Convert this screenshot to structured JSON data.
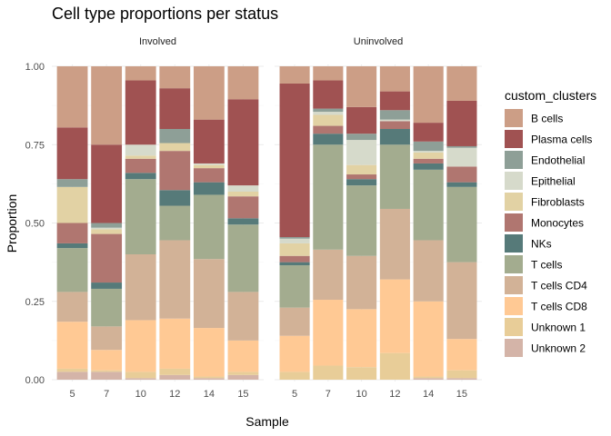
{
  "chart_data": {
    "type": "bar",
    "stacked": true,
    "title": "Cell type proportions per status",
    "xlabel": "Sample",
    "ylabel": "Proportion",
    "ylim": [
      0,
      1
    ],
    "yticks": [
      "0.00",
      "0.25",
      "0.50",
      "0.75",
      "1.00"
    ],
    "grid": true,
    "legend_title": "custom_clusters",
    "legend_position": "right",
    "stack_order_bottom_to_top": [
      "Unknown 2",
      "Unknown 1",
      "T cells CD8",
      "T cells CD4",
      "T cells",
      "NKs",
      "Monocytes",
      "Fibroblasts",
      "Epithelial",
      "Endothelial",
      "Plasma cells",
      "B cells"
    ],
    "legend_order": [
      "B cells",
      "Plasma cells",
      "Endothelial",
      "Epithelial",
      "Fibroblasts",
      "Monocytes",
      "NKs",
      "T cells",
      "T cells CD4",
      "T cells CD8",
      "Unknown 1",
      "Unknown 2"
    ],
    "colors": {
      "B cells": "#cc9e86",
      "Plasma cells": "#a05252",
      "Endothelial": "#8e9f97",
      "Epithelial": "#d6dacb",
      "Fibroblasts": "#e2d2a4",
      "Monocytes": "#b07670",
      "NKs": "#567a79",
      "T cells": "#a3ac8f",
      "T cells CD4": "#d2b297",
      "T cells CD8": "#ffc994",
      "Unknown 1": "#e8cd98",
      "Unknown 2": "#d4b4a8"
    },
    "panels": [
      {
        "label": "Involved",
        "categories": [
          "5",
          "7",
          "10",
          "12",
          "14",
          "15"
        ],
        "values": {
          "Unknown 2": [
            0.025,
            0.025,
            0.005,
            0.015,
            0.005,
            0.015
          ],
          "Unknown 1": [
            0.01,
            0.005,
            0.02,
            0.02,
            0.005,
            0.01
          ],
          "T cells CD8": [
            0.15,
            0.065,
            0.165,
            0.16,
            0.155,
            0.1
          ],
          "T cells CD4": [
            0.095,
            0.075,
            0.21,
            0.25,
            0.22,
            0.155
          ],
          "T cells": [
            0.14,
            0.12,
            0.24,
            0.11,
            0.205,
            0.215
          ],
          "NKs": [
            0.015,
            0.02,
            0.02,
            0.05,
            0.04,
            0.02
          ],
          "Monocytes": [
            0.065,
            0.155,
            0.045,
            0.125,
            0.045,
            0.07
          ],
          "Fibroblasts": [
            0.115,
            0.015,
            0.01,
            0.025,
            0.01,
            0.015
          ],
          "Epithelial": [
            0.0,
            0.005,
            0.035,
            0.0,
            0.005,
            0.02
          ],
          "Endothelial": [
            0.025,
            0.015,
            0.0,
            0.045,
            0.0,
            0.0
          ],
          "Plasma cells": [
            0.165,
            0.25,
            0.205,
            0.13,
            0.14,
            0.275
          ],
          "B cells": [
            0.195,
            0.25,
            0.045,
            0.07,
            0.17,
            0.105
          ]
        }
      },
      {
        "label": "Uninvolved",
        "categories": [
          "5",
          "7",
          "10",
          "12",
          "14",
          "15"
        ],
        "values": {
          "Unknown 2": [
            0.0,
            0.0,
            0.0,
            0.0,
            0.005,
            0.005
          ],
          "Unknown 1": [
            0.025,
            0.045,
            0.04,
            0.085,
            0.005,
            0.025
          ],
          "T cells CD8": [
            0.115,
            0.21,
            0.185,
            0.235,
            0.24,
            0.1
          ],
          "T cells CD4": [
            0.09,
            0.16,
            0.17,
            0.225,
            0.195,
            0.245
          ],
          "T cells": [
            0.135,
            0.335,
            0.225,
            0.205,
            0.225,
            0.24
          ],
          "NKs": [
            0.01,
            0.035,
            0.02,
            0.05,
            0.02,
            0.015
          ],
          "Monocytes": [
            0.02,
            0.025,
            0.015,
            0.025,
            0.015,
            0.05
          ],
          "Fibroblasts": [
            0.04,
            0.035,
            0.03,
            0.0,
            0.02,
            0.0
          ],
          "Epithelial": [
            0.015,
            0.01,
            0.08,
            0.005,
            0.005,
            0.06
          ],
          "Endothelial": [
            0.005,
            0.01,
            0.02,
            0.03,
            0.03,
            0.005
          ],
          "Plasma cells": [
            0.49,
            0.09,
            0.085,
            0.06,
            0.06,
            0.145
          ],
          "B cells": [
            0.055,
            0.045,
            0.13,
            0.08,
            0.18,
            0.11
          ]
        }
      }
    ]
  }
}
